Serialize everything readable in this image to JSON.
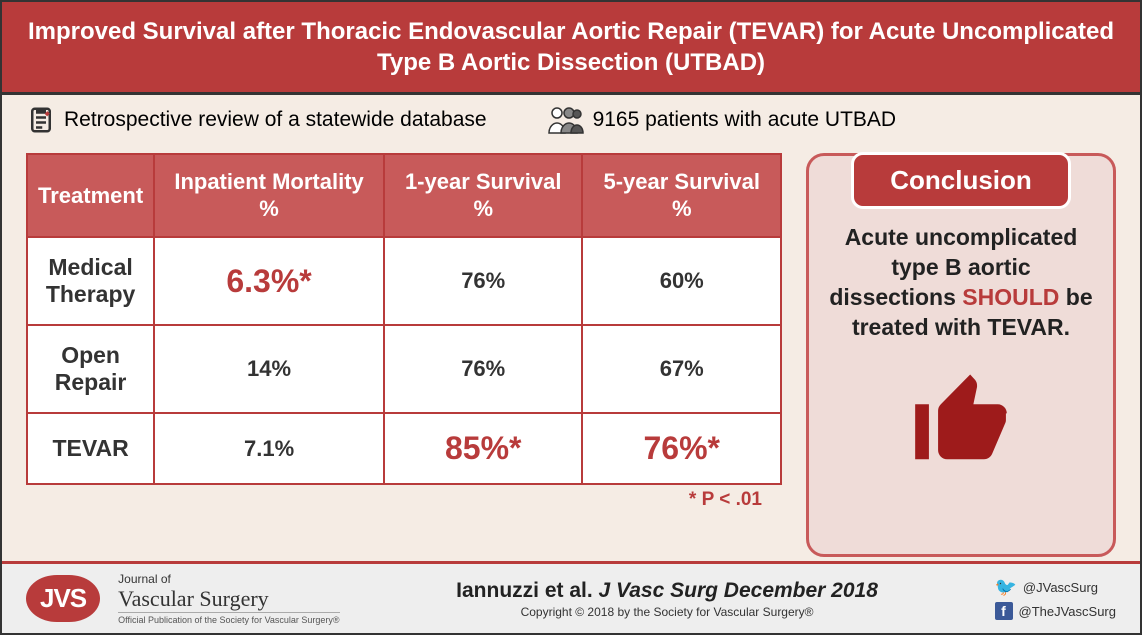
{
  "title": "Improved Survival after Thoracic Endovascular Aortic Repair (TEVAR) for Acute Uncomplicated Type B Aortic Dissection (UTBAD)",
  "info": {
    "study_desc": "Retrospective review of a statewide database",
    "patients": "9165 patients with acute UTBAD"
  },
  "table": {
    "type": "table",
    "columns": [
      "Treatment",
      "Inpatient Mortality %",
      "1-year Survival %",
      "5-year Survival %"
    ],
    "rows": [
      {
        "label": "Medical Therapy",
        "cells": [
          {
            "value": "6.3%*",
            "highlight": true
          },
          {
            "value": "76%",
            "highlight": false
          },
          {
            "value": "60%",
            "highlight": false
          }
        ]
      },
      {
        "label": "Open Repair",
        "cells": [
          {
            "value": "14%",
            "highlight": false
          },
          {
            "value": "76%",
            "highlight": false
          },
          {
            "value": "67%",
            "highlight": false
          }
        ]
      },
      {
        "label": "TEVAR",
        "cells": [
          {
            "value": "7.1%",
            "highlight": false
          },
          {
            "value": "85%*",
            "highlight": true
          },
          {
            "value": "76%*",
            "highlight": true
          }
        ]
      }
    ],
    "header_bg": "#c85a5a",
    "header_fg": "#ffffff",
    "border_color": "#b83b3b",
    "cell_bg": "#ffffff",
    "cell_fg": "#333333",
    "highlight_color": "#b83b3b",
    "header_fontsize": 22,
    "cell_fontsize": 22,
    "highlight_fontsize": 32
  },
  "footnote": "* P < .01",
  "conclusion": {
    "header": "Conclusion",
    "text_pre": "Acute uncomplicated type B aortic dissections ",
    "should": "SHOULD",
    "text_post": " be treated with TEVAR.",
    "box_bg": "#efdcd8",
    "box_border": "#c85a5a",
    "header_bg": "#b83b3b",
    "thumb_color": "#9e1b1b"
  },
  "footer": {
    "logo_text": "JVS",
    "journal_pre": "Journal of",
    "journal_name": "Vascular Surgery",
    "journal_sub": "Official Publication of the Society for Vascular Surgery®",
    "citation_author": "Iannuzzi et al. ",
    "citation_journal": "J Vasc Surg December 2018",
    "copyright": "Copyright © 2018 by the Society for Vascular Surgery®",
    "twitter": "@JVascSurg",
    "facebook": "@TheJVascSurg"
  },
  "colors": {
    "accent": "#b83b3b",
    "bg": "#f5ece4",
    "footer_bg": "#eeeeee"
  }
}
